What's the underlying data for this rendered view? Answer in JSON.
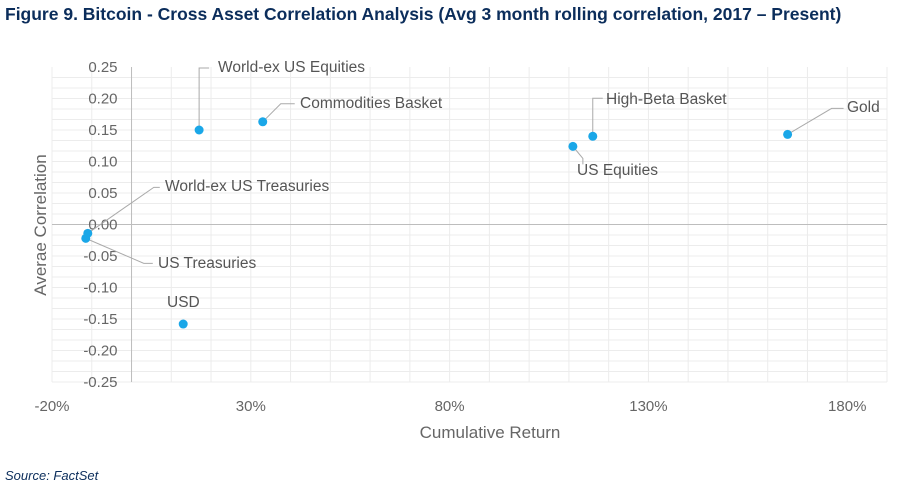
{
  "title": "Figure 9. Bitcoin - Cross Asset Correlation Analysis (Avg 3 month rolling correlation, 2017 – Present)",
  "source": "Source: FactSet",
  "chart_data": {
    "type": "scatter",
    "xlabel": "Cumulative Return",
    "ylabel": "Averae Correlation",
    "xlim": [
      -20,
      190
    ],
    "ylim": [
      -0.25,
      0.25
    ],
    "x_ticks": [
      "-20%",
      "30%",
      "80%",
      "130%",
      "180%"
    ],
    "x_tick_values": [
      -20,
      30,
      80,
      130,
      180
    ],
    "y_ticks": [
      "0.25",
      "0.20",
      "0.15",
      "0.10",
      "0.05",
      "0.00",
      "-0.05",
      "-0.10",
      "-0.15",
      "-0.20",
      "-0.25"
    ],
    "y_tick_values": [
      0.25,
      0.2,
      0.15,
      0.1,
      0.05,
      0,
      -0.05,
      -0.1,
      -0.15,
      -0.2,
      -0.25
    ],
    "grid": true,
    "marker_color": "#1aa7e8",
    "points": [
      {
        "label": "World-ex US Equities",
        "x": 17,
        "y": 0.15
      },
      {
        "label": "Commodities Basket",
        "x": 33,
        "y": 0.163
      },
      {
        "label": "High-Beta Basket",
        "x": 116,
        "y": 0.14
      },
      {
        "label": "US Equities",
        "x": 111,
        "y": 0.124
      },
      {
        "label": "Gold",
        "x": 165,
        "y": 0.143
      },
      {
        "label": "World-ex US Treasuries",
        "x": -11,
        "y": -0.014
      },
      {
        "label": "US Treasuries",
        "x": -11.5,
        "y": -0.022
      },
      {
        "label": "USD",
        "x": 13,
        "y": -0.158
      }
    ]
  }
}
